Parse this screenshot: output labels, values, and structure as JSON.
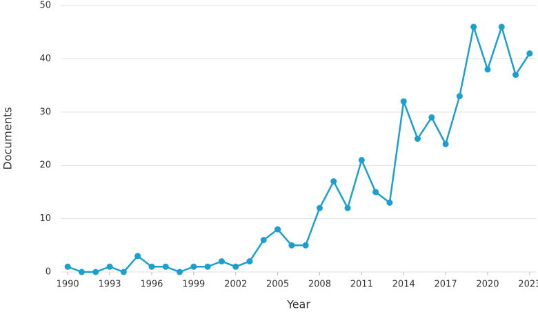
{
  "chart_data": {
    "type": "line",
    "x_label": "Year",
    "y_label": "Documents",
    "x": [
      1990,
      1991,
      1992,
      1993,
      1994,
      1995,
      1996,
      1997,
      1998,
      1999,
      2000,
      2001,
      2002,
      2003,
      2004,
      2005,
      2006,
      2007,
      2008,
      2009,
      2010,
      2011,
      2012,
      2013,
      2014,
      2015,
      2016,
      2017,
      2018,
      2019,
      2020,
      2021,
      2022,
      2023
    ],
    "series": [
      {
        "color": "#1a9fcf",
        "values": [
          1,
          0,
          0,
          1,
          0,
          3,
          1,
          1,
          0,
          1,
          1,
          2,
          1,
          2,
          6,
          8,
          5,
          5,
          12,
          17,
          12,
          21,
          15,
          13,
          32,
          25,
          29,
          24,
          33,
          46,
          38,
          46,
          37,
          41
        ]
      }
    ],
    "xlim": [
      1989.5,
      2023.5
    ],
    "xticks": [
      1990,
      1993,
      1996,
      1999,
      2002,
      2005,
      2008,
      2011,
      2014,
      2017,
      2020,
      2023
    ],
    "ylim": [
      0,
      50
    ],
    "yticks": [
      0,
      10,
      20,
      30,
      40,
      50
    ],
    "grid": true
  }
}
